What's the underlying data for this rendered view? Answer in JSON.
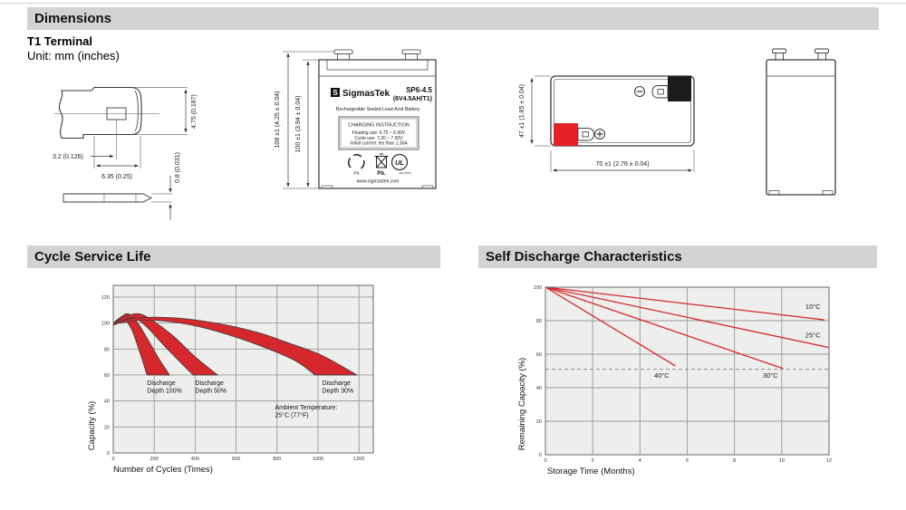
{
  "page": {
    "header_dimensions": "Dimensions",
    "terminal_type": "T1 Terminal",
    "unit_note": "Unit: mm (inches)",
    "header_cycle": "Cycle Service Life",
    "header_self_discharge": "Self Discharge Characteristics"
  },
  "terminal_drawing": {
    "dim_tab_height": "4.75 (0.187)",
    "dim_hole": "3.2 (0.126)",
    "dim_tab_width": "6.35 (0.25)",
    "dim_thickness": "0.8 (0.031)"
  },
  "front_view": {
    "dim_total_height": "108 ±1 (4.25 ± 0.04)",
    "dim_case_height": "100 ±1 (3.94 ± 0.04)",
    "logo_letter": "S",
    "brand": "SigmasTek",
    "model": "SP6-4.5",
    "spec": "(6V4.5AH/T1)",
    "subtitle": "Rechargeable Sealed Lead-Acid Battery",
    "charging_title": "CHARGING INSTRUCTION",
    "charging_lines": [
      "Floating use: 6.75 ~ 6.90V",
      "Cycle use: 7.20 ~ 7.50V",
      "Initial current: les than 1.35A"
    ],
    "recycle_pb": "Pb.",
    "bin_pb": "Pb.",
    "ul_text": "UL",
    "ul_code": "MH47829",
    "website": "www.sigmastek.com"
  },
  "top_view": {
    "dim_depth": "47 ±1 (1.85 ± 0.04)",
    "dim_width": "70 ±1 (2.76 ± 0.04)"
  },
  "colors": {
    "chart_red": "#d5282d",
    "terminal_red": "#e62228",
    "terminal_black": "#1c1c1c",
    "plot_bg": "#eeeeec",
    "grid": "#9a9a9a",
    "frame": "#777777",
    "header_bg": "#d3d3d3"
  },
  "chart_data": [
    {
      "type": "area",
      "title": "Cycle Service Life",
      "xlabel": "Number of Cycles (Times)",
      "ylabel": "Capacity (%)",
      "xlim": [
        0,
        1270
      ],
      "ylim": [
        0,
        129
      ],
      "xticks": [
        0,
        200,
        400,
        600,
        800,
        1000,
        1200
      ],
      "yticks": [
        0,
        20,
        40,
        60,
        80,
        100,
        120
      ],
      "grid": true,
      "bands": [
        {
          "name": "Discharge Depth 100%",
          "upper": [
            [
              0,
              100
            ],
            [
              40,
              105
            ],
            [
              75,
              107
            ],
            [
              120,
              100
            ],
            [
              170,
              87
            ],
            [
              225,
              72
            ],
            [
              275,
              60
            ]
          ],
          "lower": [
            [
              0,
              98
            ],
            [
              30,
              102
            ],
            [
              55,
              103
            ],
            [
              90,
              95
            ],
            [
              120,
              82
            ],
            [
              145,
              70
            ],
            [
              165,
              60
            ]
          ]
        },
        {
          "name": "Discharge Depth 50%",
          "upper": [
            [
              0,
              100
            ],
            [
              60,
              105
            ],
            [
              130,
              107
            ],
            [
              210,
              100
            ],
            [
              300,
              89
            ],
            [
              400,
              74
            ],
            [
              510,
              60
            ]
          ],
          "lower": [
            [
              0,
              98
            ],
            [
              50,
              102
            ],
            [
              105,
              104
            ],
            [
              170,
              96
            ],
            [
              240,
              84
            ],
            [
              320,
              71
            ],
            [
              390,
              60
            ]
          ]
        },
        {
          "name": "Discharge Depth 30%",
          "upper": [
            [
              0,
              100
            ],
            [
              120,
              104
            ],
            [
              300,
              104
            ],
            [
              500,
              100
            ],
            [
              700,
              93
            ],
            [
              850,
              85
            ],
            [
              1020,
              75
            ],
            [
              1190,
              60
            ]
          ],
          "lower": [
            [
              0,
              99
            ],
            [
              120,
              102
            ],
            [
              280,
              101
            ],
            [
              450,
              96
            ],
            [
              620,
              88
            ],
            [
              790,
              78
            ],
            [
              900,
              70
            ],
            [
              985,
              60
            ]
          ]
        }
      ],
      "annotations": [
        {
          "lines": [
            "Discharge",
            "Depth 100%"
          ],
          "x": 165,
          "y": 57
        },
        {
          "lines": [
            "Discharge",
            "Depth 50%"
          ],
          "x": 400,
          "y": 57
        },
        {
          "lines": [
            "Discharge",
            "Depth 30%"
          ],
          "x": 1020,
          "y": 57
        },
        {
          "lines": [
            "Ambient Temperature:",
            "25°C (77°F)"
          ],
          "x": 790,
          "y": 38
        }
      ]
    },
    {
      "type": "line",
      "title": "Self Discharge Characteristics",
      "xlabel": "Storage Time (Months)",
      "ylabel": "Remaining Capacity (%)",
      "xlim": [
        0,
        12
      ],
      "ylim": [
        0,
        100
      ],
      "xticks": [
        0,
        2,
        4,
        6,
        8,
        10,
        12
      ],
      "yticks": [
        0,
        20,
        40,
        60,
        80,
        100
      ],
      "grid": true,
      "series": [
        {
          "name": "10°C",
          "points": [
            [
              0,
              100
            ],
            [
              11.8,
              80.5
            ]
          ],
          "label_x": 11.0,
          "label_y": 87
        },
        {
          "name": "25°C",
          "points": [
            [
              0,
              100
            ],
            [
              12,
              64
            ]
          ],
          "label_x": 11.0,
          "label_y": 70
        },
        {
          "name": "30°C",
          "points": [
            [
              0,
              100
            ],
            [
              10.05,
              51.5
            ]
          ],
          "label_x": 9.2,
          "label_y": 46
        },
        {
          "name": "40°C",
          "points": [
            [
              0,
              100
            ],
            [
              5.5,
              53
            ]
          ],
          "label_x": 4.6,
          "label_y": 46
        }
      ],
      "dashed_line_y": 51
    }
  ]
}
